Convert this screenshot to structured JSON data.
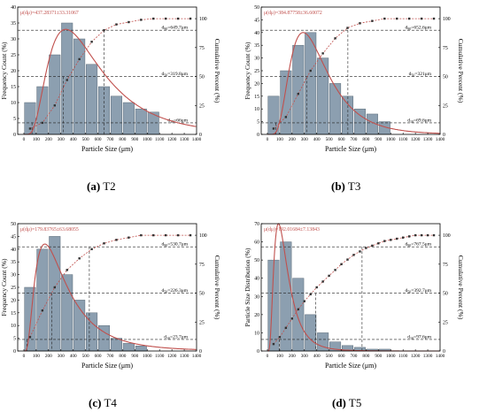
{
  "figure": {
    "captions": [
      {
        "letter": "(a)",
        "name": "T2"
      },
      {
        "letter": "(b)",
        "name": "T3"
      },
      {
        "letter": "(c)",
        "name": "T4"
      },
      {
        "letter": "(d)",
        "name": "T5"
      }
    ]
  },
  "chart_data": [
    {
      "type": "bar",
      "panel": "a",
      "xlabel": "Particle Size (μm)",
      "ylabel": "Frequency Count (%)",
      "ylabel_right": "Cumulative Percent (%)",
      "xlim": [
        -50,
        1400
      ],
      "ylim": [
        0,
        40
      ],
      "ylim_right": [
        0,
        110
      ],
      "xticks": [
        0,
        100,
        200,
        300,
        400,
        500,
        600,
        700,
        800,
        900,
        1000,
        1100,
        1200,
        1300,
        1400
      ],
      "yticks": [
        0,
        5,
        10,
        15,
        20,
        25,
        30,
        35,
        40
      ],
      "yticks_right": [
        0,
        25,
        50,
        75,
        100
      ],
      "bar_width": 90,
      "bar_centers": [
        50,
        150,
        250,
        350,
        450,
        550,
        650,
        750,
        850,
        950,
        1050
      ],
      "bar_values": [
        10,
        15,
        25,
        35,
        30,
        22,
        15,
        12,
        10,
        8,
        7
      ],
      "fit_curve": {
        "kind": "lognormal-shape",
        "peak_x": 340,
        "peak_y": 33,
        "sigma": 0.62,
        "x_end": 1400
      },
      "cumulative_points": {
        "x": [
          50,
          150,
          250,
          350,
          450,
          550,
          650,
          750,
          850,
          950,
          1050,
          1150,
          1250,
          1350
        ],
        "y": [
          5,
          10,
          25,
          47,
          65,
          80,
          90,
          95,
          97,
          99,
          100,
          100,
          100,
          100
        ]
      },
      "reference_lines": [
        {
          "label": "d10=66μm",
          "x": 66,
          "cum": 10
        },
        {
          "label": "d50=319.8μm",
          "x": 319.8,
          "cum": 50
        },
        {
          "label": "d90=649.7μm",
          "x": 649.7,
          "cum": 90
        }
      ],
      "annotation": "μ(dμ)=437.28371±33.31067"
    },
    {
      "type": "bar",
      "panel": "b",
      "xlabel": "Particle Size (μm)",
      "ylabel": "Frequency Count (%)",
      "ylabel_right": "Cumulative Percent (%)",
      "xlim": [
        -50,
        1400
      ],
      "ylim": [
        0,
        50
      ],
      "ylim_right": [
        0,
        110
      ],
      "xticks": [
        0,
        100,
        200,
        300,
        400,
        500,
        600,
        700,
        800,
        900,
        1000,
        1100,
        1200,
        1300,
        1400
      ],
      "yticks": [
        0,
        5,
        10,
        15,
        20,
        25,
        30,
        35,
        40,
        45,
        50
      ],
      "yticks_right": [
        0,
        25,
        50,
        75,
        100
      ],
      "bar_width": 90,
      "bar_centers": [
        50,
        150,
        250,
        350,
        450,
        550,
        650,
        750,
        850,
        950
      ],
      "bar_values": [
        15,
        25,
        35,
        40,
        30,
        20,
        15,
        10,
        8,
        5
      ],
      "fit_curve": {
        "kind": "lognormal-shape",
        "peak_x": 290,
        "peak_y": 40,
        "sigma": 0.52,
        "x_end": 1400
      },
      "cumulative_points": {
        "x": [
          50,
          150,
          250,
          350,
          450,
          550,
          650,
          750,
          850,
          950,
          1050,
          1150,
          1250,
          1350
        ],
        "y": [
          5,
          15,
          35,
          55,
          70,
          83,
          92,
          96,
          98,
          100,
          100,
          100,
          100,
          100
        ]
      },
      "reference_lines": [
        {
          "label": "d10=69.6μm",
          "x": 69.6,
          "cum": 10
        },
        {
          "label": "d50=321μm",
          "x": 321,
          "cum": 50
        },
        {
          "label": "d90=652.6μm",
          "x": 652.6,
          "cum": 90
        }
      ],
      "annotation": "μ(dμ)=384.87758±36.60072"
    },
    {
      "type": "bar",
      "panel": "c",
      "xlabel": "Particle Size (μm)",
      "ylabel": "Frequency Count (%)",
      "ylabel_right": "Cumulative Percent (%)",
      "xlim": [
        -50,
        1400
      ],
      "ylim": [
        0,
        50
      ],
      "ylim_right": [
        0,
        110
      ],
      "xticks": [
        0,
        100,
        200,
        300,
        400,
        500,
        600,
        700,
        800,
        900,
        1000,
        1100,
        1200,
        1300,
        1400
      ],
      "yticks": [
        0,
        5,
        10,
        15,
        20,
        25,
        30,
        35,
        40,
        45,
        50
      ],
      "yticks_right": [
        0,
        25,
        50,
        75,
        100
      ],
      "bar_width": 90,
      "bar_centers": [
        50,
        150,
        250,
        350,
        450,
        550,
        650,
        750,
        850,
        950
      ],
      "bar_values": [
        25,
        40,
        45,
        30,
        20,
        15,
        10,
        5,
        3,
        2
      ],
      "fit_curve": {
        "kind": "lognormal-shape",
        "peak_x": 170,
        "peak_y": 42,
        "sigma": 0.72,
        "x_end": 1400
      },
      "cumulative_points": {
        "x": [
          50,
          150,
          250,
          350,
          450,
          550,
          650,
          750,
          850,
          950,
          1050,
          1150,
          1250,
          1350
        ],
        "y": [
          12,
          35,
          55,
          70,
          80,
          88,
          93,
          96,
          98,
          100,
          100,
          100,
          100,
          100
        ]
      },
      "reference_lines": [
        {
          "label": "d10=23.7μm",
          "x": 23.7,
          "cum": 10
        },
        {
          "label": "d50=226.3μm",
          "x": 226.3,
          "cum": 50
        },
        {
          "label": "d90=530.7μm",
          "x": 530.7,
          "cum": 90
        }
      ],
      "annotation": "μ(dμ)=179.83765±63.68055"
    },
    {
      "type": "bar",
      "panel": "d",
      "xlabel": "Particle Size (μm)",
      "ylabel": "Particle Size Distribution (%)",
      "ylabel_right": "Cumulative Percent (%)",
      "xlim": [
        -50,
        1400
      ],
      "ylim": [
        0,
        70
      ],
      "ylim_right": [
        0,
        110
      ],
      "xticks": [
        0,
        100,
        200,
        300,
        400,
        500,
        600,
        700,
        800,
        900,
        1000,
        1100,
        1200,
        1300,
        1400
      ],
      "yticks": [
        0,
        10,
        20,
        30,
        40,
        50,
        60,
        70
      ],
      "yticks_right": [
        0,
        25,
        50,
        75,
        100
      ],
      "bar_width": 90,
      "bar_centers": [
        50,
        150,
        250,
        350,
        450,
        550,
        650,
        750,
        850,
        950
      ],
      "bar_values": [
        50,
        60,
        40,
        20,
        10,
        5,
        3,
        2,
        1,
        1
      ],
      "fit_curve": {
        "kind": "lognormal-shape",
        "peak_x": 90,
        "peak_y": 70,
        "sigma": 0.62,
        "x_end": 1400
      },
      "cumulative_points": {
        "x": [
          50,
          100,
          150,
          200,
          250,
          300,
          350,
          400,
          450,
          500,
          550,
          600,
          650,
          700,
          750,
          800,
          850,
          900,
          950,
          1000,
          1050,
          1100,
          1150,
          1200,
          1250,
          1300,
          1350
        ],
        "y": [
          6,
          12,
          20,
          28,
          36,
          43,
          49,
          55,
          60,
          65,
          70,
          75,
          79,
          83,
          86,
          89,
          91,
          93,
          95,
          96,
          97,
          98,
          99,
          100,
          100,
          100,
          100
        ]
      },
      "reference_lines": [
        {
          "label": "d10=97.6μm",
          "x": 97.6,
          "cum": 10
        },
        {
          "label": "d50=392.7μm",
          "x": 392.7,
          "cum": 50
        },
        {
          "label": "d90=767.5μm",
          "x": 767.5,
          "cum": 90
        }
      ],
      "annotation": "μ(dμ)=192.01684±7.13843"
    }
  ]
}
